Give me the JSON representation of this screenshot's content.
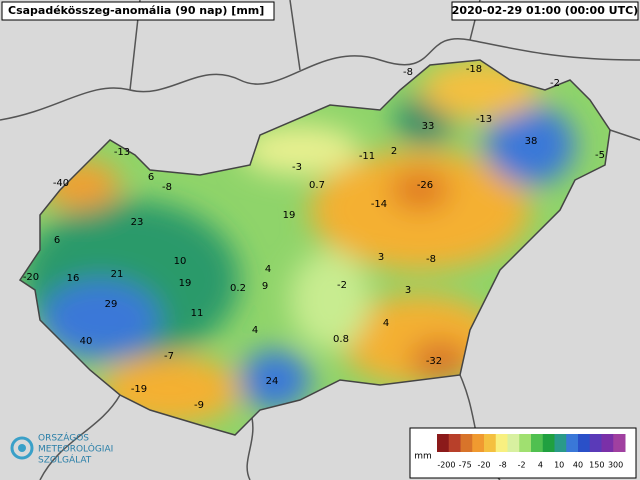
{
  "header": {
    "title": "Csapadékösszeg-anomália (90 nap) [mm]",
    "timestamp": "2020-02-29 01:00 (00:00 UTC)"
  },
  "stations": [
    -8,
    -18,
    -2,
    33,
    -13,
    38,
    -5,
    -13,
    -11,
    2,
    -3,
    6,
    -8,
    -40,
    0.7,
    -26,
    -14,
    19,
    23,
    6,
    10,
    3,
    -8,
    4,
    -20,
    16,
    21,
    19,
    9,
    0.2,
    -2,
    3,
    29,
    11,
    4,
    4,
    40,
    0.8,
    -7,
    -32,
    24,
    -19,
    -9
  ],
  "legend": {
    "unit": "mm",
    "ticks": [
      -200,
      -75,
      -20,
      -8,
      -2,
      4,
      10,
      40,
      150,
      300
    ]
  },
  "logo": {
    "line1": "ORSZÁGOS",
    "line2": "METEOROLÓGIAI",
    "line3": "SZOLGÁLAT"
  }
}
